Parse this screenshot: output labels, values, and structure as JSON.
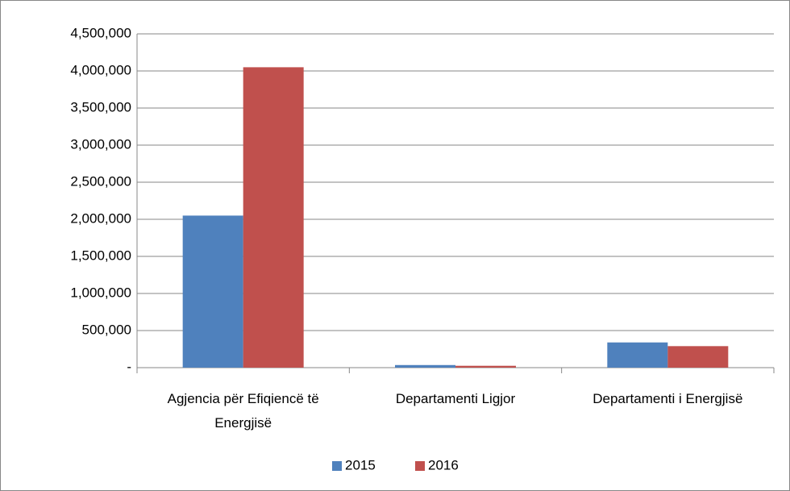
{
  "chart_data": {
    "type": "bar",
    "categories": [
      "Agjencia për Efiqiencë të Energjisë",
      "Departamenti Ligjor",
      "Departamenti i Energjisë"
    ],
    "series": [
      {
        "name": "2015",
        "color": "#4f81bd",
        "values": [
          2050000,
          35000,
          340000
        ]
      },
      {
        "name": "2016",
        "color": "#c0504d",
        "values": [
          4050000,
          25000,
          290000
        ]
      }
    ],
    "ylim": [
      0,
      4500000
    ],
    "yticks": [
      {
        "value": 0,
        "label": "-"
      },
      {
        "value": 500000,
        "label": "500,000"
      },
      {
        "value": 1000000,
        "label": "1,000,000"
      },
      {
        "value": 1500000,
        "label": "1,500,000"
      },
      {
        "value": 2000000,
        "label": "2,000,000"
      },
      {
        "value": 2500000,
        "label": "2,500,000"
      },
      {
        "value": 3000000,
        "label": "3,000,000"
      },
      {
        "value": 3500000,
        "label": "3,500,000"
      },
      {
        "value": 4000000,
        "label": "4,000,000"
      },
      {
        "value": 4500000,
        "label": "4,500,000"
      }
    ],
    "grid": true,
    "legend": "bottom"
  }
}
